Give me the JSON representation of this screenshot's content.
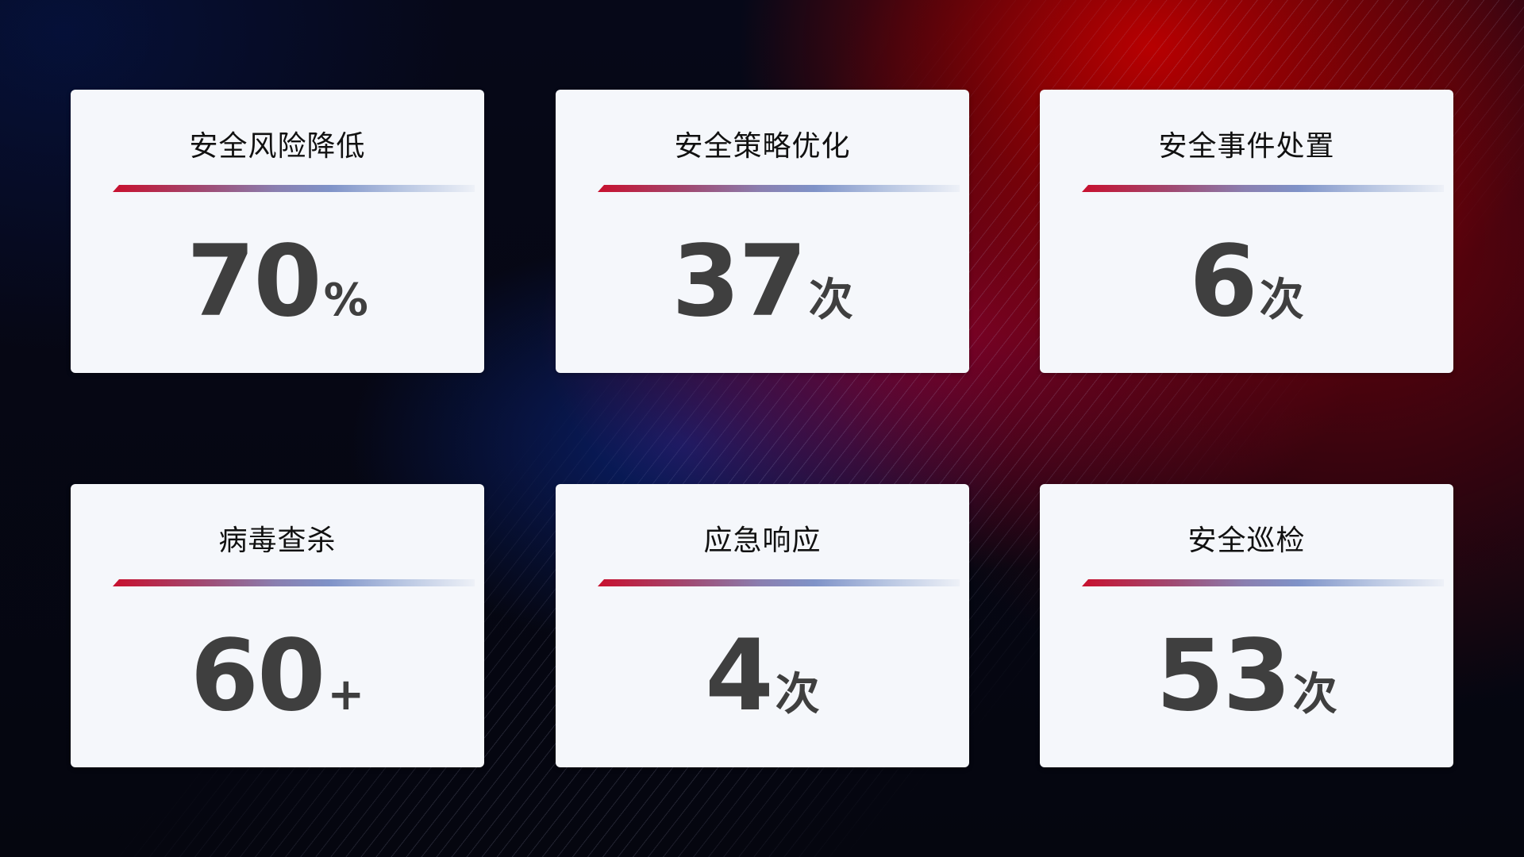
{
  "cards": [
    {
      "title": "安全风险降低",
      "value": "70",
      "unit": "%"
    },
    {
      "title": "安全策略优化",
      "value": "37",
      "unit": "次"
    },
    {
      "title": "安全事件处置",
      "value": "6",
      "unit": "次"
    },
    {
      "title": "病毒查杀",
      "value": "60",
      "unit": "+"
    },
    {
      "title": "应急响应",
      "value": "4",
      "unit": "次"
    },
    {
      "title": "安全巡检",
      "value": "53",
      "unit": "次"
    }
  ],
  "colors": {
    "accent_red": "#c8102e",
    "accent_blue": "#7f93c8",
    "card_bg": "#f5f7fb",
    "value_text": "#3f3f3f"
  }
}
